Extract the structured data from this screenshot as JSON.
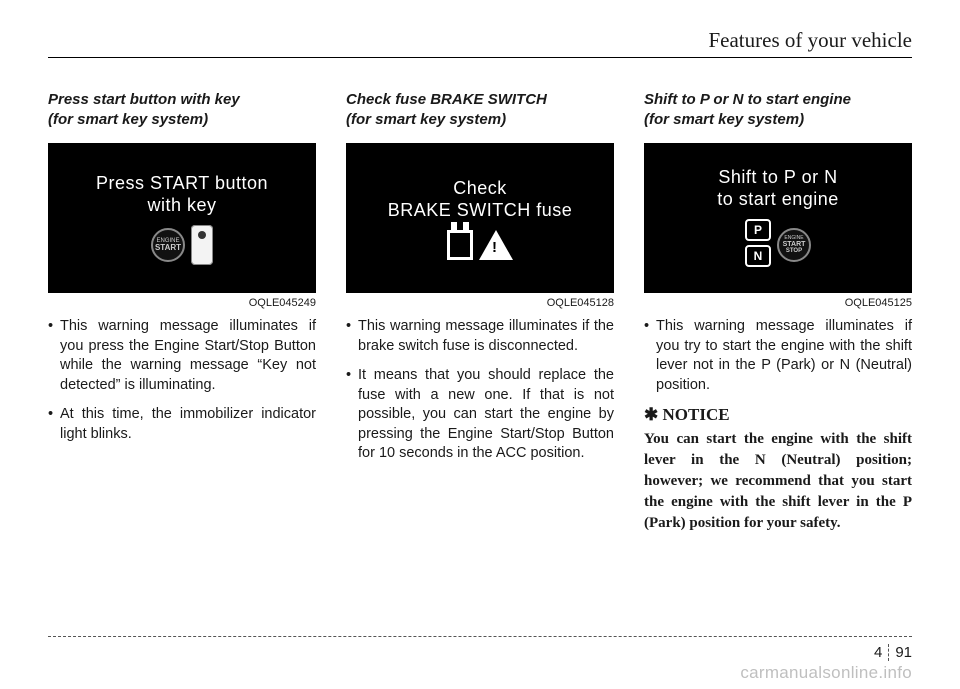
{
  "header": {
    "section_title": "Features of your vehicle"
  },
  "columns": [
    {
      "heading_line1": "Press start button with key",
      "heading_line2": "(for smart key system)",
      "display_line1": "Press START button",
      "display_line2": "with key",
      "image_code": "OQLE045249",
      "bullets": [
        "This warning message illuminates if you press the Engine Start/Stop Button while the warning message “Key not detected” is illuminating.",
        "At this time, the immobilizer indicator light blinks."
      ]
    },
    {
      "heading_line1": "Check fuse BRAKE SWITCH",
      "heading_line2": "(for smart key system)",
      "display_line1": "Check",
      "display_line2": "BRAKE SWITCH fuse",
      "image_code": "OQLE045128",
      "bullets": [
        "This warning message illuminates if the brake switch fuse is disconnected.",
        "It means that you should replace the fuse with a new one. If that is not possible, you can start the engine by pressing the Engine Start/Stop Button for 10 seconds in the ACC position."
      ]
    },
    {
      "heading_line1": "Shift to P or N to start engine",
      "heading_line2": "(for smart key system)",
      "display_line1": "Shift to P or N",
      "display_line2": "to start engine",
      "image_code": "OQLE045125",
      "bullets": [
        "This warning message illuminates if you try to start the engine with the shift lever not in the P (Park) or N (Neutral) position."
      ],
      "notice_heading": "✱ NOTICE",
      "notice_body": "You can start the engine with the shift lever in the N (Neutral) position; however; we recommend that you start the engine with the shift lever in the P (Park) position for your safety."
    }
  ],
  "footer": {
    "chapter": "4",
    "page": "91"
  },
  "watermark": "carmanualsonline.info"
}
